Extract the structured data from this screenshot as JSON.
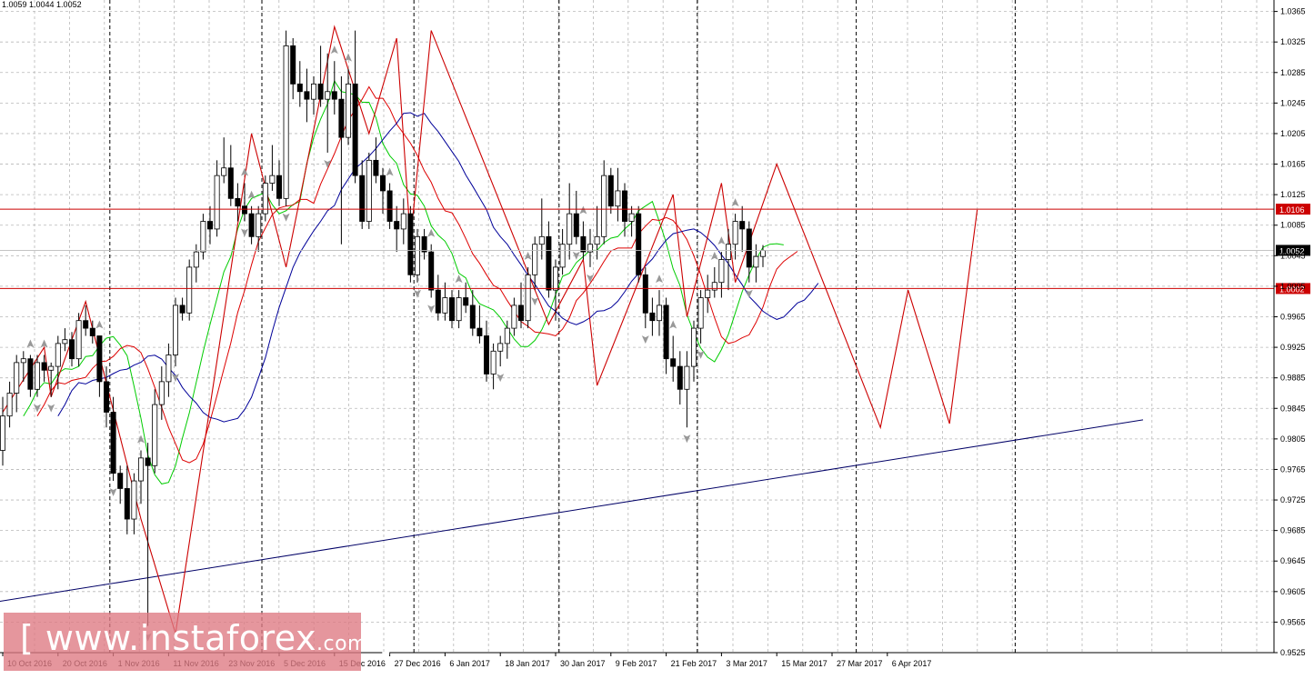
{
  "header": {
    "ohlc_text": "1.0059 1.0044 1.0052"
  },
  "watermark": {
    "open_bracket": "[",
    "text_main": "www.instaforex",
    "text_tld": ".com",
    "close_bracket": "]"
  },
  "colors": {
    "grid": "#b8b8b8",
    "axis": "#000000",
    "bull_body": "#ffffff",
    "bear_body": "#000000",
    "wick": "#000000",
    "zigzag": "#cc0000",
    "ma_green": "#00cc00",
    "ma_red": "#dd0000",
    "ma_blue": "#000099",
    "hline": "#cc0000",
    "trendline": "#000066",
    "fractal": "#999999",
    "current_price": "#000000"
  },
  "chart_data": {
    "type": "candlestick",
    "symbol_ohlc": "1.0059 1.0044 1.0052",
    "ylim": [
      0.9525,
      1.038
    ],
    "y_ticks": [
      "1.0365",
      "1.0325",
      "1.0285",
      "1.0245",
      "1.0205",
      "1.0165",
      "1.0125",
      "1.0085",
      "1.0045",
      "1.0005",
      "0.9965",
      "0.9925",
      "0.9885",
      "0.9845",
      "0.9805",
      "0.9765",
      "0.9725",
      "0.9685",
      "0.9645",
      "0.9605",
      "0.9565",
      "0.9525"
    ],
    "x_ticks": [
      {
        "idx": 0,
        "label": "10 Oct 2016"
      },
      {
        "idx": 8,
        "label": "20 Oct 2016"
      },
      {
        "idx": 16,
        "label": "1 Nov 2016"
      },
      {
        "idx": 24,
        "label": "11 Nov 2016"
      },
      {
        "idx": 32,
        "label": "23 Nov 2016"
      },
      {
        "idx": 40,
        "label": "5 Dec 2016"
      },
      {
        "idx": 48,
        "label": "15 Dec 2016"
      },
      {
        "idx": 56,
        "label": "27 Dec 2016"
      },
      {
        "idx": 64,
        "label": "6 Jan 2017"
      },
      {
        "idx": 72,
        "label": "18 Jan 2017"
      },
      {
        "idx": 80,
        "label": "30 Jan 2017"
      },
      {
        "idx": 88,
        "label": "9 Feb 2017"
      },
      {
        "idx": 96,
        "label": "21 Feb 2017"
      },
      {
        "idx": 104,
        "label": "3 Mar 2017"
      },
      {
        "idx": 112,
        "label": "15 Mar 2017"
      },
      {
        "idx": 120,
        "label": "27 Mar 2017"
      },
      {
        "idx": 128,
        "label": "6 Apr 2017"
      }
    ],
    "period_separators": [
      16,
      38,
      60,
      81,
      101,
      124,
      147
    ],
    "candles": [
      [
        0.979,
        0.986,
        0.977,
        0.9835
      ],
      [
        0.9835,
        0.988,
        0.982,
        0.9865
      ],
      [
        0.9865,
        0.9915,
        0.984,
        0.9905
      ],
      [
        0.9905,
        0.992,
        0.988,
        0.991
      ],
      [
        0.991,
        0.9915,
        0.986,
        0.987
      ],
      [
        0.987,
        0.9915,
        0.986,
        0.9905
      ],
      [
        0.9905,
        0.9915,
        0.988,
        0.9895
      ],
      [
        0.9895,
        0.9905,
        0.986,
        0.99
      ],
      [
        0.99,
        0.994,
        0.987,
        0.993
      ],
      [
        0.993,
        0.995,
        0.992,
        0.9935
      ],
      [
        0.9935,
        0.9945,
        0.99,
        0.991
      ],
      [
        0.991,
        0.997,
        0.99,
        0.996
      ],
      [
        0.996,
        0.998,
        0.994,
        0.995
      ],
      [
        0.995,
        0.996,
        0.993,
        0.994
      ],
      [
        0.994,
        0.994,
        0.986,
        0.988
      ],
      [
        0.988,
        0.99,
        0.982,
        0.984
      ],
      [
        0.984,
        0.986,
        0.975,
        0.976
      ],
      [
        0.976,
        0.977,
        0.972,
        0.974
      ],
      [
        0.974,
        0.977,
        0.968,
        0.97
      ],
      [
        0.97,
        0.976,
        0.968,
        0.975
      ],
      [
        0.975,
        0.979,
        0.972,
        0.978
      ],
      [
        0.978,
        0.98,
        0.956,
        0.977
      ],
      [
        0.977,
        0.987,
        0.976,
        0.985
      ],
      [
        0.985,
        0.99,
        0.983,
        0.988
      ],
      [
        0.988,
        0.993,
        0.986,
        0.9915
      ],
      [
        0.9915,
        0.999,
        0.99,
        0.998
      ],
      [
        0.998,
        0.999,
        0.996,
        0.997
      ],
      [
        0.997,
        1.004,
        0.996,
        1.003
      ],
      [
        1.003,
        1.006,
        1.001,
        1.005
      ],
      [
        1.005,
        1.01,
        1.004,
        1.009
      ],
      [
        1.009,
        1.011,
        1.006,
        1.008
      ],
      [
        1.008,
        1.017,
        1.007,
        1.015
      ],
      [
        1.015,
        1.02,
        1.014,
        1.016
      ],
      [
        1.016,
        1.019,
        1.011,
        1.012
      ],
      [
        1.012,
        1.014,
        1.009,
        1.011
      ],
      [
        1.011,
        1.014,
        1.009,
        1.01
      ],
      [
        1.01,
        1.011,
        1.006,
        1.007
      ],
      [
        1.007,
        1.011,
        1.005,
        1.01
      ],
      [
        1.01,
        1.015,
        1.009,
        1.014
      ],
      [
        1.014,
        1.019,
        1.013,
        1.015
      ],
      [
        1.015,
        1.017,
        1.011,
        1.012
      ],
      [
        1.012,
        1.034,
        1.011,
        1.032
      ],
      [
        1.032,
        1.033,
        1.025,
        1.027
      ],
      [
        1.027,
        1.03,
        1.024,
        1.026
      ],
      [
        1.026,
        1.029,
        1.022,
        1.025
      ],
      [
        1.025,
        1.028,
        1.023,
        1.027
      ],
      [
        1.027,
        1.032,
        1.024,
        1.025
      ],
      [
        1.025,
        1.031,
        1.018,
        1.026
      ],
      [
        1.026,
        1.03,
        1.023,
        1.025
      ],
      [
        1.025,
        1.028,
        1.006,
        1.02
      ],
      [
        1.02,
        1.029,
        1.019,
        1.027
      ],
      [
        1.027,
        1.034,
        1.014,
        1.015
      ],
      [
        1.015,
        1.017,
        1.008,
        1.009
      ],
      [
        1.009,
        1.018,
        1.008,
        1.017
      ],
      [
        1.017,
        1.02,
        1.014,
        1.015
      ],
      [
        1.015,
        1.016,
        1.01,
        1.013
      ],
      [
        1.013,
        1.014,
        1.008,
        1.009
      ],
      [
        1.009,
        1.011,
        1.005,
        1.008
      ],
      [
        1.008,
        1.012,
        1.006,
        1.01
      ],
      [
        1.01,
        1.011,
        1.001,
        1.002
      ],
      [
        1.002,
        1.008,
        1.001,
        1.007
      ],
      [
        1.007,
        1.008,
        1.004,
        1.005
      ],
      [
        1.005,
        1.006,
        0.999,
        1.0
      ],
      [
        1.0,
        1.002,
        0.996,
        0.997
      ],
      [
        0.997,
        1.001,
        0.996,
        0.999
      ],
      [
        0.999,
        1.0,
        0.995,
        0.996
      ],
      [
        0.996,
        1.0,
        0.995,
        0.999
      ],
      [
        0.999,
        1.001,
        0.997,
        0.998
      ],
      [
        0.998,
        1.0,
        0.994,
        0.995
      ],
      [
        0.995,
        0.998,
        0.993,
        0.994
      ],
      [
        0.994,
        0.996,
        0.988,
        0.989
      ],
      [
        0.989,
        0.993,
        0.987,
        0.992
      ],
      [
        0.992,
        0.994,
        0.99,
        0.993
      ],
      [
        0.993,
        0.996,
        0.991,
        0.995
      ],
      [
        0.995,
        0.999,
        0.994,
        0.998
      ],
      [
        0.998,
        1.001,
        0.995,
        0.996
      ],
      [
        0.996,
        1.003,
        0.995,
        1.002
      ],
      [
        1.002,
        1.007,
        1.0,
        1.006
      ],
      [
        1.006,
        1.012,
        1.004,
        1.007
      ],
      [
        1.007,
        1.009,
        0.999,
        1.0
      ],
      [
        1.0,
        1.004,
        0.996,
        1.003
      ],
      [
        1.003,
        1.008,
        1.002,
        1.006
      ],
      [
        1.006,
        1.014,
        1.004,
        1.01
      ],
      [
        1.01,
        1.013,
        1.006,
        1.007
      ],
      [
        1.007,
        1.009,
        1.004,
        1.005
      ],
      [
        1.005,
        1.008,
        1.003,
        1.006
      ],
      [
        1.006,
        1.011,
        1.004,
        1.007
      ],
      [
        1.007,
        1.017,
        1.006,
        1.015
      ],
      [
        1.015,
        1.016,
        1.01,
        1.011
      ],
      [
        1.011,
        1.016,
        1.009,
        1.013
      ],
      [
        1.013,
        1.014,
        1.007,
        1.009
      ],
      [
        1.009,
        1.011,
        1.007,
        1.01
      ],
      [
        1.01,
        1.011,
        1.001,
        1.002
      ],
      [
        1.002,
        1.003,
        0.995,
        0.997
      ],
      [
        0.997,
        0.999,
        0.994,
        0.996
      ],
      [
        0.996,
        1.0,
        0.994,
        0.998
      ],
      [
        0.998,
        0.999,
        0.989,
        0.991
      ],
      [
        0.991,
        0.994,
        0.988,
        0.99
      ],
      [
        0.99,
        0.992,
        0.985,
        0.987
      ],
      [
        0.987,
        0.992,
        0.982,
        0.99
      ],
      [
        0.99,
        0.996,
        0.988,
        0.995
      ],
      [
        0.995,
        1.0,
        0.993,
        0.999
      ],
      [
        0.999,
        1.002,
        0.997,
        1.0
      ],
      [
        1.0,
        1.003,
        0.999,
        1.001
      ],
      [
        1.001,
        1.005,
        0.999,
        1.004
      ],
      [
        1.004,
        1.008,
        1.0,
        1.006
      ],
      [
        1.006,
        1.01,
        1.004,
        1.009
      ],
      [
        1.009,
        1.011,
        1.005,
        1.008
      ],
      [
        1.008,
        1.009,
        1.001,
        1.003
      ],
      [
        1.003,
        1.006,
        1.001,
        1.0044
      ],
      [
        1.0044,
        1.0059,
        1.003,
        1.0052
      ]
    ],
    "zigzag": [
      [
        0,
        0.984
      ],
      [
        6,
        0.9925
      ],
      [
        7,
        0.986
      ],
      [
        12,
        0.9985
      ],
      [
        20,
        0.97
      ],
      [
        25,
        0.955
      ],
      [
        36,
        1.0205
      ],
      [
        41,
        1.003
      ],
      [
        48,
        1.0345
      ],
      [
        53,
        1.0205
      ],
      [
        57,
        1.033
      ],
      [
        59,
        1.0065
      ],
      [
        62,
        1.034
      ],
      [
        79,
        0.9955
      ],
      [
        84,
        1.004
      ],
      [
        86,
        0.9875
      ],
      [
        97,
        1.0125
      ],
      [
        99,
        0.9965
      ],
      [
        104,
        1.014
      ],
      [
        106,
        1.001
      ],
      [
        112,
        1.0165
      ],
      [
        127,
        0.982
      ],
      [
        131,
        1.0
      ],
      [
        137,
        0.9825
      ],
      [
        141,
        1.0105
      ]
    ],
    "fractals_up": [
      4,
      6,
      14,
      20,
      35,
      36,
      48,
      50,
      56,
      62,
      66,
      76,
      84,
      95,
      97,
      103,
      104,
      106,
      113,
      116,
      127,
      135,
      141
    ],
    "fractals_down": [
      5,
      7,
      16,
      21,
      25,
      35,
      41,
      47,
      60,
      62,
      72,
      77,
      83,
      85,
      93,
      99,
      101,
      108,
      121,
      129,
      135,
      137
    ],
    "hlines": [
      {
        "value": 1.0106,
        "label": "1.0106"
      },
      {
        "value": 1.0002,
        "label": "1.0002"
      }
    ],
    "current_price": {
      "value": 1.0052,
      "label": "1.0052"
    },
    "trendline": {
      "x1": -2,
      "y1": 0.959,
      "x2": 165,
      "y2": 0.983
    }
  }
}
